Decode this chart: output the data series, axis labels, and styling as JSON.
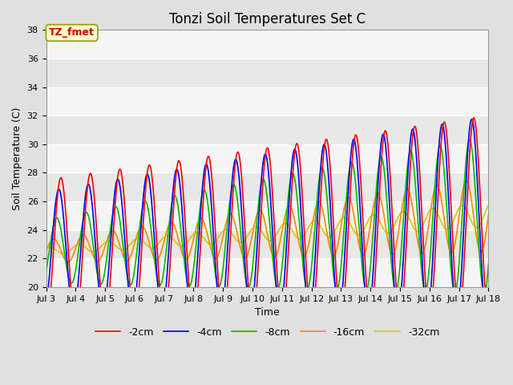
{
  "title": "Tonzi Soil Temperatures Set C",
  "xlabel": "Time",
  "ylabel": "Soil Temperature (C)",
  "ylim": [
    20,
    38
  ],
  "xlim_days": [
    3,
    18
  ],
  "annotation_text": "TZ_fmet",
  "annotation_color": "#cc0000",
  "annotation_bg": "#ffffcc",
  "annotation_border": "#999900",
  "series": {
    "-2cm": {
      "color": "#ff0000",
      "lw": 1.2
    },
    "-4cm": {
      "color": "#0000ff",
      "lw": 1.2
    },
    "-8cm": {
      "color": "#00bb00",
      "lw": 1.2
    },
    "-16cm": {
      "color": "#ff8800",
      "lw": 1.2
    },
    "-32cm": {
      "color": "#cccc00",
      "lw": 1.2
    }
  },
  "bg_color": "#e0e0e0",
  "plot_bg_light": "#f5f5f5",
  "plot_bg_dark": "#e8e8e8",
  "grid_color": "#ffffff",
  "title_fontsize": 12,
  "label_fontsize": 9,
  "tick_fontsize": 8,
  "legend_fontsize": 9
}
